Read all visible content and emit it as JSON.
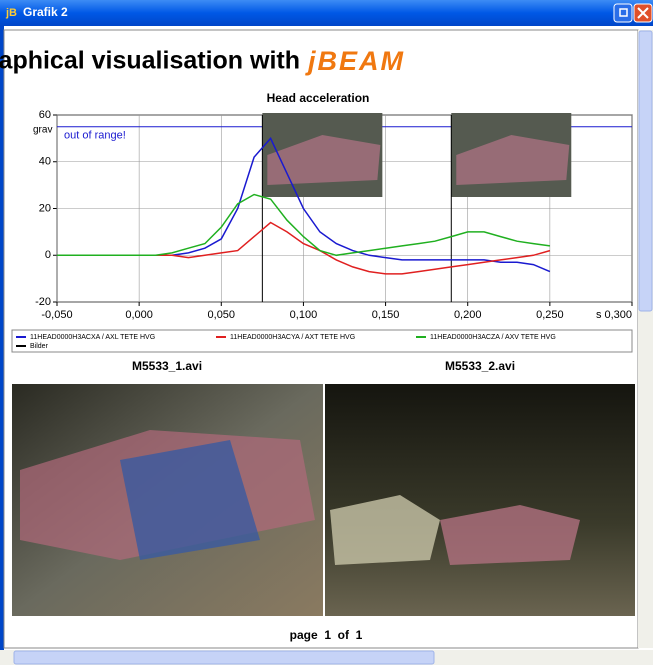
{
  "window": {
    "icon": "jB",
    "title": "Grafik 2"
  },
  "heading": {
    "text": "Graphical visualisation with",
    "brand": "jBEAM"
  },
  "chart_data": {
    "type": "line",
    "title": "Head acceleration",
    "y_label": "grav",
    "x_label": "s",
    "annotation": "out of range!",
    "limit_line": 55,
    "x": [
      -0.05,
      -0.04,
      -0.03,
      -0.02,
      -0.01,
      0,
      0.01,
      0.02,
      0.03,
      0.04,
      0.05,
      0.06,
      0.07,
      0.08,
      0.09,
      0.1,
      0.11,
      0.12,
      0.13,
      0.14,
      0.15,
      0.16,
      0.17,
      0.18,
      0.19,
      0.2,
      0.21,
      0.22,
      0.23,
      0.24,
      0.25
    ],
    "series": [
      {
        "name": "11HEAD0000H3ACXA / AXL TETE HVG",
        "color": "#1a1ad0",
        "values": [
          0,
          0,
          0,
          0,
          0,
          0,
          0,
          0,
          1,
          3,
          7,
          20,
          42,
          50,
          35,
          20,
          10,
          5,
          2,
          0,
          -1,
          -2,
          -2,
          -2,
          -2,
          -2,
          -2,
          -3,
          -3,
          -4,
          -7
        ]
      },
      {
        "name": "11HEAD0000H3ACYA / AXT TETE HVG",
        "color": "#e02020",
        "values": [
          0,
          0,
          0,
          0,
          0,
          0,
          0,
          0,
          -1,
          0,
          1,
          2,
          8,
          14,
          10,
          5,
          2,
          -2,
          -5,
          -7,
          -8,
          -8,
          -7,
          -6,
          -5,
          -4,
          -3,
          -2,
          -1,
          0,
          2
        ]
      },
      {
        "name": "11HEAD0000H3ACZA / AXV TETE HVG",
        "color": "#20b020",
        "values": [
          0,
          0,
          0,
          0,
          0,
          0,
          0,
          1,
          3,
          5,
          12,
          22,
          26,
          24,
          15,
          8,
          2,
          0,
          1,
          2,
          3,
          4,
          5,
          6,
          8,
          10,
          10,
          8,
          6,
          5,
          4
        ]
      }
    ],
    "markers": {
      "name": "Bilder",
      "color": "#000000",
      "x": [
        0.075,
        0.19
      ]
    },
    "xlim": [
      -0.05,
      0.3
    ],
    "ylim": [
      -20,
      60
    ],
    "xticks": [
      {
        "value": -0.05,
        "label": "-0,050"
      },
      {
        "value": 0,
        "label": "0,000"
      },
      {
        "value": 0.05,
        "label": "0,050"
      },
      {
        "value": 0.1,
        "label": "0,100"
      },
      {
        "value": 0.15,
        "label": "0,150"
      },
      {
        "value": 0.2,
        "label": "0,200"
      },
      {
        "value": 0.25,
        "label": "0,250"
      },
      {
        "value": 0.3,
        "label": "0,300"
      }
    ],
    "yticks": [
      -20,
      0,
      20,
      40,
      60
    ],
    "grid": true
  },
  "videos": [
    "M5533_1.avi",
    "M5533_2.avi"
  ],
  "footer": "page  1  of  1"
}
